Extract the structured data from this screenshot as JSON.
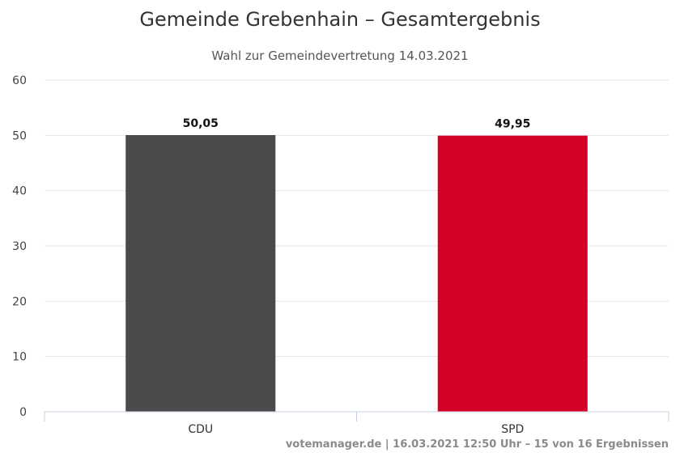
{
  "chart_data": {
    "type": "bar",
    "title": "Gemeinde Grebenhain – Gesamtergebnis",
    "subtitle": "Wahl zur Gemeindevertretung 14.03.2021",
    "categories": [
      "CDU",
      "SPD"
    ],
    "values": [
      50.05,
      49.95
    ],
    "value_labels": [
      "50,05",
      "49,95"
    ],
    "colors": [
      "#4a4a4a",
      "#d40027"
    ],
    "ylim": [
      0,
      60
    ],
    "yticks": [
      0,
      10,
      20,
      30,
      40,
      50,
      60
    ],
    "grid": true,
    "legend": "none"
  },
  "credits": "votemanager.de | 16.03.2021 12:50 Uhr – 15 von 16 Ergebnissen"
}
